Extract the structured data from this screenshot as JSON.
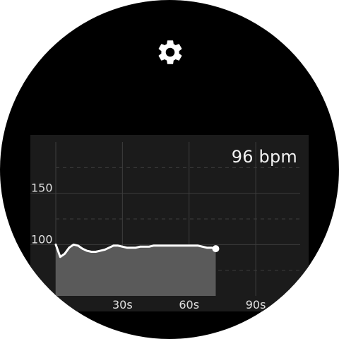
{
  "colors": {
    "background": "#000000",
    "panel": "#1b1b1b",
    "grid": "#3d3d3d",
    "line": "#ffffff",
    "fill": "#5a5a5a",
    "text": "#e0e0e0"
  },
  "icons": {
    "settings": "gear-icon"
  },
  "readout": {
    "bpm_text": "96 bpm"
  },
  "chart_data": {
    "type": "area",
    "xlabel": "",
    "ylabel": "",
    "xlim": [
      0,
      110
    ],
    "ylim": [
      50,
      200
    ],
    "x_ticks": [
      30,
      60,
      90
    ],
    "x_tick_labels": [
      "30s",
      "60s",
      "90s"
    ],
    "y_ticks": [
      100,
      150
    ],
    "y_tick_labels": [
      "100",
      "150"
    ],
    "grid": true,
    "series": [
      {
        "x": [
          0,
          2,
          4,
          6,
          8,
          10,
          12,
          14,
          16,
          18,
          20,
          22,
          24,
          26,
          28,
          30,
          32,
          34,
          36,
          38,
          40,
          42,
          44,
          46,
          48,
          50,
          52,
          54,
          56,
          58,
          60,
          62,
          64,
          66,
          68,
          70,
          72
        ],
        "y": [
          100,
          88,
          91,
          97,
          100,
          99,
          96,
          94,
          93,
          93,
          94,
          95,
          97,
          99,
          99,
          98,
          97,
          97,
          97,
          98,
          98,
          98,
          99,
          99,
          99,
          99,
          99,
          99,
          99,
          99,
          99,
          99,
          99,
          98,
          97,
          97,
          96
        ]
      }
    ]
  }
}
